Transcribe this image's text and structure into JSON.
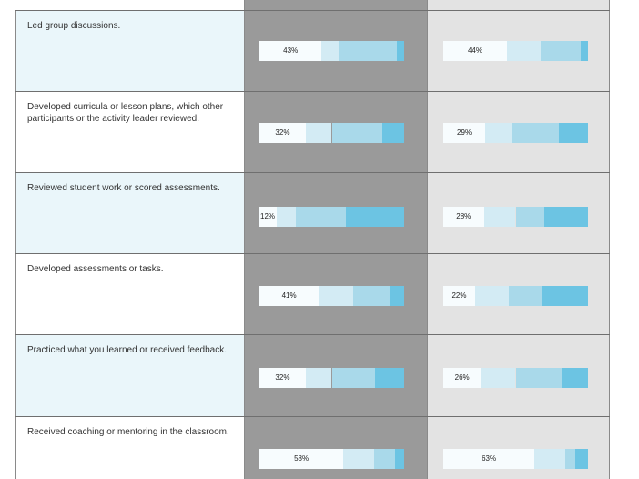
{
  "chart_data": {
    "type": "bar",
    "stacked": true,
    "categories": [
      "Led group discussions.",
      "Developed curricula or lesson plans, which other participants or the activity leader reviewed.",
      "Reviewed student work or scored assessments.",
      "Developed assessments or tasks.",
      "Practiced what you learned or received feedback.",
      "Received coaching or mentoring in the classroom."
    ],
    "segment_colors": [
      "#f7fcfe",
      "#d3ebf4",
      "#a9d9ea",
      "#6cc4e3"
    ],
    "series": [
      {
        "segments": [
          [
            43,
            12,
            40,
            5
          ],
          [
            32,
            18,
            35,
            15
          ],
          [
            12,
            13,
            35,
            40
          ],
          [
            41,
            24,
            25,
            10
          ],
          [
            32,
            18,
            30,
            20
          ],
          [
            58,
            21,
            15,
            6
          ]
        ],
        "labels": [
          "43%",
          "32%",
          "12%",
          "41%",
          "32%",
          "58%"
        ]
      },
      {
        "segments": [
          [
            44,
            23,
            28,
            5
          ],
          [
            29,
            19,
            32,
            20
          ],
          [
            28,
            22,
            20,
            30
          ],
          [
            22,
            23,
            23,
            32
          ],
          [
            26,
            24,
            32,
            18
          ],
          [
            63,
            21,
            7,
            9
          ]
        ],
        "labels": [
          "44%",
          "29%",
          "28%",
          "22%",
          "26%",
          "63%"
        ]
      }
    ],
    "xlim": [
      0,
      100
    ],
    "legend": "none"
  },
  "rows": [
    {
      "label": "Led group discussions."
    },
    {
      "label": "Developed curricula or lesson plans, which other participants or the activity leader reviewed."
    },
    {
      "label": "Reviewed student work or scored assessments."
    },
    {
      "label": "Developed assessments or tasks."
    },
    {
      "label": "Practiced what you learned or received feedback."
    },
    {
      "label": "Received coaching or mentoring in the classroom."
    }
  ]
}
